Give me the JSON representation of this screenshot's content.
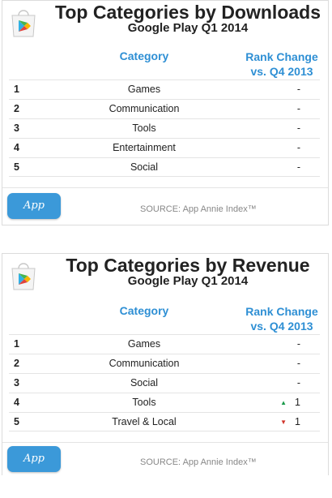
{
  "brand": {
    "logo_text": "App Annie",
    "accent": "#2e8fd4",
    "logo_bg": "#3b99d9",
    "up": "#1a9a4a",
    "down": "#d0332a"
  },
  "source": "SOURCE: App Annie Index™",
  "chart_data": [
    {
      "type": "table",
      "title": "Top Categories by Downloads",
      "subtitle": "Google Play Q1 2014",
      "columns": [
        "Category",
        "Rank Change",
        "vs. Q4 2013"
      ],
      "rows": [
        {
          "rank": "1",
          "category": "Games",
          "change": "-"
        },
        {
          "rank": "2",
          "category": "Communication",
          "change": "-"
        },
        {
          "rank": "3",
          "category": "Tools",
          "change": "-"
        },
        {
          "rank": "4",
          "category": "Entertainment",
          "change": "-"
        },
        {
          "rank": "5",
          "category": "Social",
          "change": "-"
        }
      ]
    },
    {
      "type": "table",
      "title": "Top Categories by Revenue",
      "subtitle": "Google Play Q1 2014",
      "columns": [
        "Category",
        "Rank Change",
        "vs. Q4 2013"
      ],
      "rows": [
        {
          "rank": "1",
          "category": "Games",
          "change": "-"
        },
        {
          "rank": "2",
          "category": "Communication",
          "change": "-"
        },
        {
          "rank": "3",
          "category": "Social",
          "change": "-"
        },
        {
          "rank": "4",
          "category": "Tools",
          "change": "1",
          "direction": "up"
        },
        {
          "rank": "5",
          "category": "Travel & Local",
          "change": "1",
          "direction": "down"
        }
      ]
    }
  ]
}
